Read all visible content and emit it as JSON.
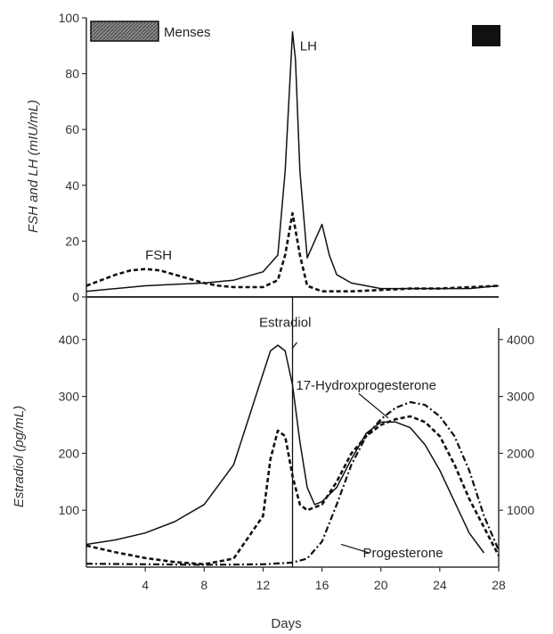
{
  "chart_data": [
    {
      "type": "line",
      "panel": "top",
      "ylabel": "FSH and LH (mIU/mL)",
      "ylim": [
        0,
        100
      ],
      "yticks": [
        0,
        20,
        40,
        60,
        80,
        100
      ],
      "xlim": [
        0,
        28
      ],
      "legend": {
        "label": "Menses",
        "position": "top-left"
      },
      "series": [
        {
          "name": "LH",
          "style": "solid",
          "x": [
            0,
            2,
            4,
            6,
            8,
            10,
            12,
            13,
            13.5,
            14,
            14.2,
            14.5,
            15,
            15.5,
            16,
            16.5,
            17,
            18,
            20,
            22,
            24,
            26,
            28
          ],
          "y": [
            2,
            3,
            4,
            4.5,
            5,
            6,
            9,
            15,
            45,
            95,
            85,
            45,
            14,
            20,
            26,
            15,
            8,
            5,
            3,
            3,
            3,
            3,
            4
          ]
        },
        {
          "name": "FSH",
          "style": "dashed",
          "x": [
            0,
            1,
            2,
            3,
            4,
            5,
            6,
            7,
            8,
            9,
            10,
            11,
            12,
            13,
            13.5,
            14,
            14.5,
            15,
            16,
            18,
            20,
            22,
            24,
            26,
            28
          ],
          "y": [
            4,
            6,
            8,
            9.5,
            10,
            9.5,
            8,
            6.5,
            5,
            4,
            3.5,
            3.5,
            3.5,
            6,
            15,
            30,
            15,
            4,
            2,
            2,
            2.5,
            3,
            3,
            3.5,
            4
          ]
        }
      ],
      "annotations": [
        {
          "text": "LH",
          "x": 14.5,
          "y": 90
        },
        {
          "text": "FSH",
          "x": 4,
          "y": 15
        }
      ]
    },
    {
      "type": "line",
      "panel": "bottom",
      "xlabel": "Days",
      "ylabel": "Estradiol (pg/mL)",
      "ylim": [
        0,
        420
      ],
      "yticks": [
        100,
        200,
        300,
        400
      ],
      "y2lim": [
        0,
        4200
      ],
      "y2ticks": [
        1000,
        2000,
        3000,
        4000
      ],
      "xlim": [
        0,
        28
      ],
      "xticks": [
        4,
        8,
        12,
        16,
        20,
        24,
        28
      ],
      "series": [
        {
          "name": "Estradiol",
          "style": "solid",
          "axis": "left",
          "x": [
            0,
            2,
            4,
            6,
            8,
            10,
            11,
            12,
            12.5,
            13,
            13.5,
            14,
            14.5,
            15,
            15.5,
            16,
            17,
            18,
            19,
            20,
            21,
            22,
            23,
            24,
            25,
            26,
            27
          ],
          "y": [
            40,
            48,
            60,
            80,
            110,
            180,
            260,
            340,
            380,
            390,
            380,
            320,
            220,
            140,
            110,
            115,
            140,
            190,
            235,
            255,
            255,
            245,
            215,
            170,
            115,
            60,
            25
          ]
        },
        {
          "name": "17-Hydroxprogesterone",
          "style": "dashed",
          "axis": "right",
          "x": [
            0,
            2,
            4,
            6,
            8,
            10,
            12,
            12.5,
            13,
            13.5,
            14,
            14.5,
            15,
            16,
            17,
            18,
            19,
            20,
            21,
            22,
            23,
            24,
            25,
            26,
            27,
            28
          ],
          "y": [
            380,
            260,
            160,
            90,
            50,
            150,
            900,
            1900,
            2400,
            2300,
            1600,
            1100,
            1000,
            1100,
            1500,
            2000,
            2300,
            2500,
            2600,
            2650,
            2550,
            2300,
            1800,
            1200,
            700,
            200
          ]
        },
        {
          "name": "Progesterone",
          "style": "dash-dot",
          "axis": "right",
          "x": [
            0,
            4,
            8,
            12,
            14,
            15,
            16,
            17,
            18,
            19,
            20,
            21,
            22,
            23,
            24,
            25,
            26,
            27,
            28
          ],
          "y": [
            60,
            50,
            40,
            50,
            80,
            150,
            450,
            1100,
            1800,
            2300,
            2600,
            2800,
            2900,
            2850,
            2650,
            2300,
            1700,
            900,
            300
          ]
        }
      ],
      "annotations": [
        {
          "text": "Estradiol",
          "x": 13.5,
          "y": 430
        },
        {
          "text": "17-Hydroxprogesterone",
          "x": 19,
          "y": 320
        },
        {
          "text": "Progesterone",
          "x": 21.5,
          "y": 25
        }
      ]
    }
  ]
}
